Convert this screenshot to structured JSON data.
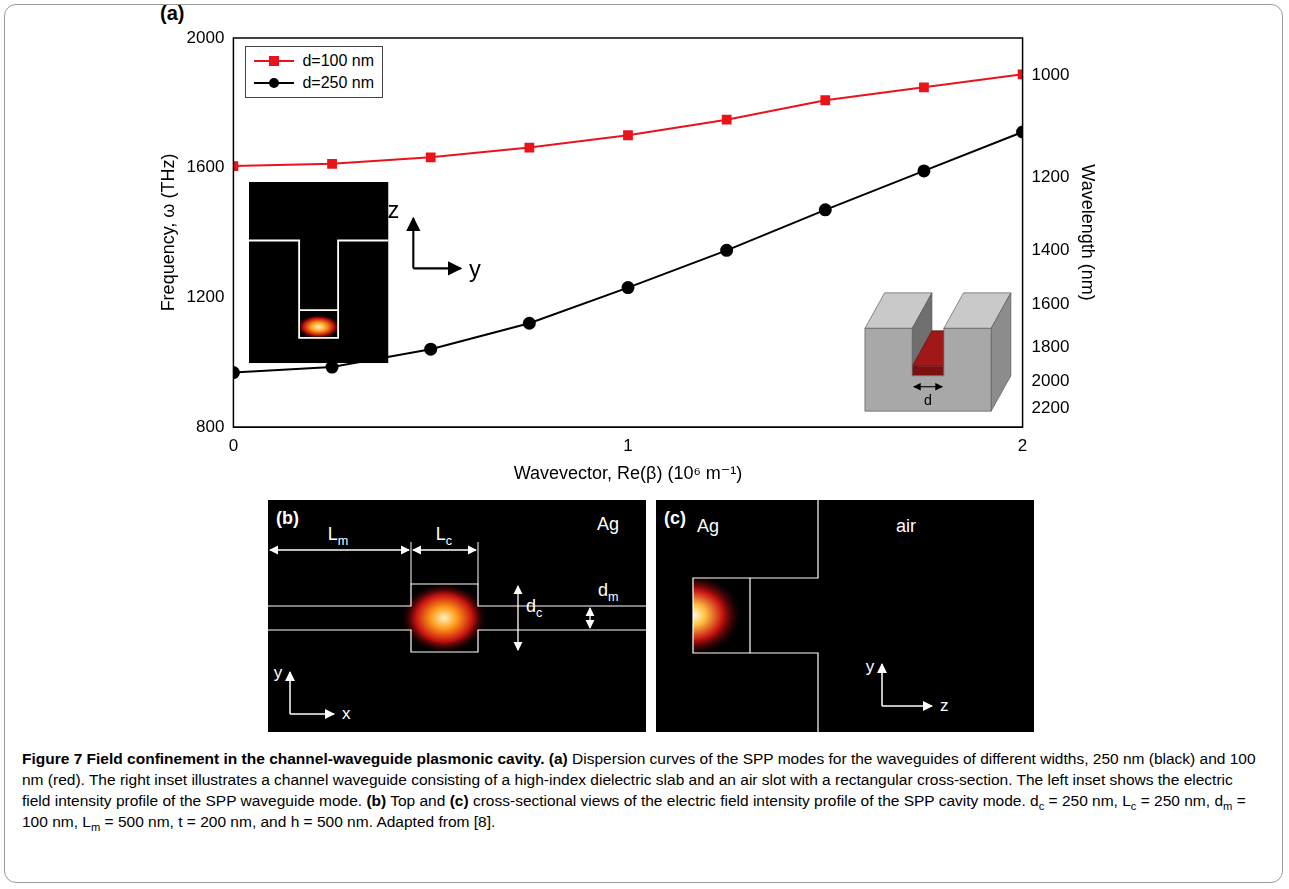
{
  "chart_data": {
    "type": "line",
    "panel_label": "(a)",
    "x_label": "Wavevector, Re(β) (10⁶ m⁻¹)",
    "y_label": "Frequency, ω (THz)",
    "y2_label": "Wavelength (nm)",
    "x": [
      0,
      0.25,
      0.5,
      0.75,
      1,
      1.25,
      1.5,
      1.75,
      2
    ],
    "xlim": [
      0,
      2
    ],
    "xticks": [
      0,
      1,
      2
    ],
    "ylim": [
      800,
      2000
    ],
    "yticks": [
      800,
      1200,
      1600,
      2000
    ],
    "y2lim": [
      942,
      2356
    ],
    "y2ticks": [
      1000,
      1200,
      1400,
      1600,
      1800,
      2000,
      2200
    ],
    "grid": false,
    "legend": "upper left",
    "series": [
      {
        "name": "d=100 nm",
        "color": "#e8141b",
        "marker": "square",
        "line_style": "solid",
        "values": [
          1605,
          1612,
          1632,
          1662,
          1700,
          1748,
          1808,
          1848,
          1888
        ]
      },
      {
        "name": "d=250 nm",
        "color": "#000000",
        "marker": "circle",
        "line_style": "solid",
        "values": [
          968,
          985,
          1040,
          1120,
          1230,
          1345,
          1470,
          1590,
          1710
        ]
      }
    ],
    "insets": {
      "left": {
        "axis_labels": [
          "z",
          "y"
        ]
      },
      "right": {
        "label": "d"
      }
    }
  },
  "panel_b": {
    "label": "(b)",
    "material": "Ag",
    "axes": [
      "y",
      "x"
    ],
    "dimensions": {
      "L_m": {
        "text": "L",
        "sub": "m"
      },
      "L_c": {
        "text": "L",
        "sub": "c"
      },
      "d_c": {
        "text": "d",
        "sub": "c"
      },
      "d_m": {
        "text": "d",
        "sub": "m"
      }
    }
  },
  "panel_c": {
    "label": "(c)",
    "materials": [
      "Ag",
      "air"
    ],
    "axes": [
      "y",
      "z"
    ]
  },
  "caption": [
    {
      "text": "Figure 7 Field confinement in the channel-waveguide plasmonic cavity. ",
      "bold": true
    },
    {
      "text": "(a)",
      "bold": true
    },
    {
      "text": " Dispersion curves of the SPP modes for the waveguides of different widths, 250 nm (black) and 100 nm (red). The right inset illustrates a channel waveguide consisting of a high-index dielectric slab and an air slot with a rectangular cross-section. The left inset shows the electric field intensity profile of the SPP waveguide mode. "
    },
    {
      "text": "(b)",
      "bold": true
    },
    {
      "text": " Top and "
    },
    {
      "text": "(c)",
      "bold": true
    },
    {
      "text": " cross-sectional views of the electric field intensity profile of the SPP cavity mode. d"
    },
    {
      "text": "c",
      "sub": true
    },
    {
      "text": " = 250 nm, L"
    },
    {
      "text": "c",
      "sub": true
    },
    {
      "text": " = 250 nm, d"
    },
    {
      "text": "m",
      "sub": true
    },
    {
      "text": " = 100 nm, L"
    },
    {
      "text": "m",
      "sub": true
    },
    {
      "text": " = 500 nm, t = 200 nm, and h = 500 nm. Adapted from [8]."
    }
  ]
}
